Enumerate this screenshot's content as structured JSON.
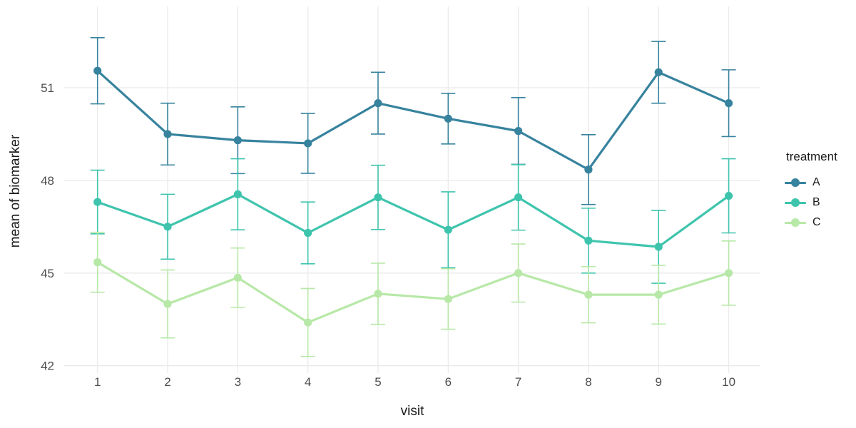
{
  "styles": {
    "background": "#ffffff",
    "grid_color": "#eaeaea",
    "tick_label_color": "#4d4d4d",
    "axis_title_color": "#1a1a1a"
  },
  "chart_data": {
    "type": "line",
    "title": "",
    "xlabel": "visit",
    "ylabel": "mean of biomarker",
    "legend_title": "treatment",
    "legend_position": "right",
    "grid": true,
    "error_bars": true,
    "x": [
      1,
      2,
      3,
      4,
      5,
      6,
      7,
      8,
      9,
      10
    ],
    "x_ticks": [
      "1",
      "2",
      "3",
      "4",
      "5",
      "6",
      "7",
      "8",
      "9",
      "10"
    ],
    "y_ticks": [
      "42",
      "45",
      "48",
      "51"
    ],
    "y_tick_values": [
      42,
      45,
      48,
      51
    ],
    "xlim": [
      0.55,
      10.45
    ],
    "ylim": [
      41.7,
      53.7
    ],
    "series": [
      {
        "name": "A",
        "color": "#37839e",
        "values": [
          51.55,
          49.5,
          49.3,
          49.2,
          50.5,
          50.0,
          49.6,
          48.35,
          51.5,
          50.5
        ],
        "se": [
          1.07,
          1.0,
          1.08,
          0.97,
          1.0,
          0.82,
          1.08,
          1.13,
          1.0,
          1.08
        ]
      },
      {
        "name": "B",
        "color": "#3ec4ad",
        "values": [
          47.3,
          46.5,
          47.55,
          46.3,
          47.45,
          46.4,
          47.45,
          46.05,
          45.85,
          47.5
        ],
        "se": [
          1.03,
          1.05,
          1.15,
          1.0,
          1.04,
          1.23,
          1.06,
          1.05,
          1.18,
          1.2
        ]
      },
      {
        "name": "C",
        "color": "#b7e8a7",
        "values": [
          45.35,
          44.0,
          44.85,
          43.4,
          44.33,
          44.16,
          45.0,
          44.3,
          44.3,
          45.0
        ],
        "se": [
          0.97,
          1.1,
          0.96,
          1.1,
          0.99,
          0.98,
          0.94,
          0.91,
          0.95,
          1.04
        ]
      }
    ]
  }
}
